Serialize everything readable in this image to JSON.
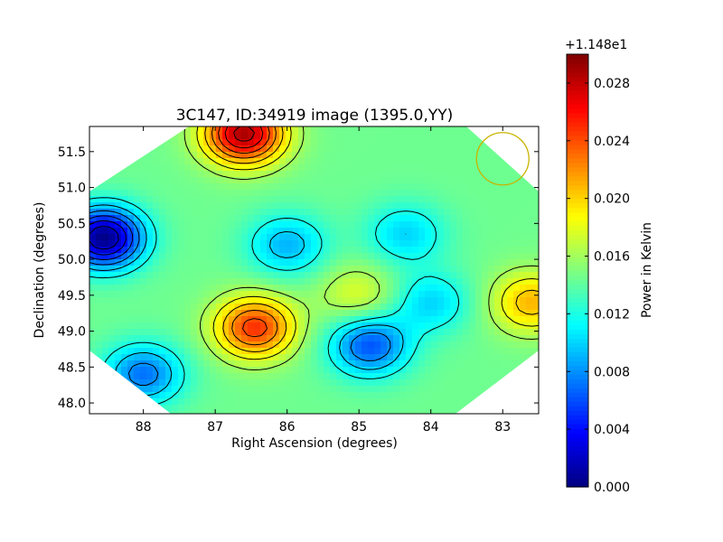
{
  "chart_data": {
    "type": "heatmap",
    "title": "3C147, ID:34919 image (1395.0,YY)",
    "xlabel": "Right Ascension (degrees)",
    "ylabel": "Declination (degrees)",
    "xlim": [
      88.75,
      82.5
    ],
    "ylim": [
      47.85,
      51.85
    ],
    "x_ticks": [
      88,
      87,
      86,
      85,
      84,
      83
    ],
    "x_tick_labels": [
      "88",
      "87",
      "86",
      "85",
      "84",
      "83"
    ],
    "y_ticks": [
      48.0,
      48.5,
      49.0,
      49.5,
      50.0,
      50.5,
      51.0,
      51.5
    ],
    "y_tick_labels": [
      "48.0",
      "48.5",
      "49.0",
      "49.5",
      "50.0",
      "50.5",
      "51.0",
      "51.5"
    ],
    "colormap": "jet",
    "colorbar": {
      "label": "Power in Kelvin",
      "offset_label": "+1.148e1",
      "range": [
        0.0,
        0.03
      ],
      "ticks": [
        0.0,
        0.004,
        0.008,
        0.012,
        0.016,
        0.02,
        0.024,
        0.028
      ],
      "tick_labels": [
        "0.000",
        "0.004",
        "0.008",
        "0.012",
        "0.016",
        "0.020",
        "0.024",
        "0.028"
      ]
    },
    "background_level": 0.0145,
    "features": [
      {
        "kind": "minimum",
        "ra": 88.55,
        "dec": 50.3,
        "value": 0.0
      },
      {
        "kind": "maximum",
        "ra": 86.6,
        "dec": 51.75,
        "value": 0.029
      },
      {
        "kind": "maximum",
        "ra": 86.45,
        "dec": 49.05,
        "value": 0.025
      },
      {
        "kind": "minimum",
        "ra": 84.85,
        "dec": 48.8,
        "value": 0.006
      },
      {
        "kind": "minimum",
        "ra": 86.0,
        "dec": 50.2,
        "value": 0.009
      },
      {
        "kind": "minimum",
        "ra": 88.0,
        "dec": 48.4,
        "value": 0.007
      },
      {
        "kind": "minimum",
        "ra": 84.35,
        "dec": 50.35,
        "value": 0.01
      },
      {
        "kind": "minimum",
        "ra": 84.0,
        "dec": 49.4,
        "value": 0.01
      },
      {
        "kind": "maximum",
        "ra": 82.6,
        "dec": 49.4,
        "value": 0.021
      },
      {
        "kind": "maximum",
        "ra": 85.0,
        "dec": 49.5,
        "value": 0.018
      }
    ],
    "contour_levels": [
      0.002,
      0.004,
      0.006,
      0.008,
      0.01,
      0.012,
      0.016,
      0.018,
      0.02,
      0.022,
      0.024,
      0.026,
      0.028
    ],
    "beam_circle": {
      "ra": 83.0,
      "dec": 51.4,
      "color": "#c8b400"
    }
  }
}
